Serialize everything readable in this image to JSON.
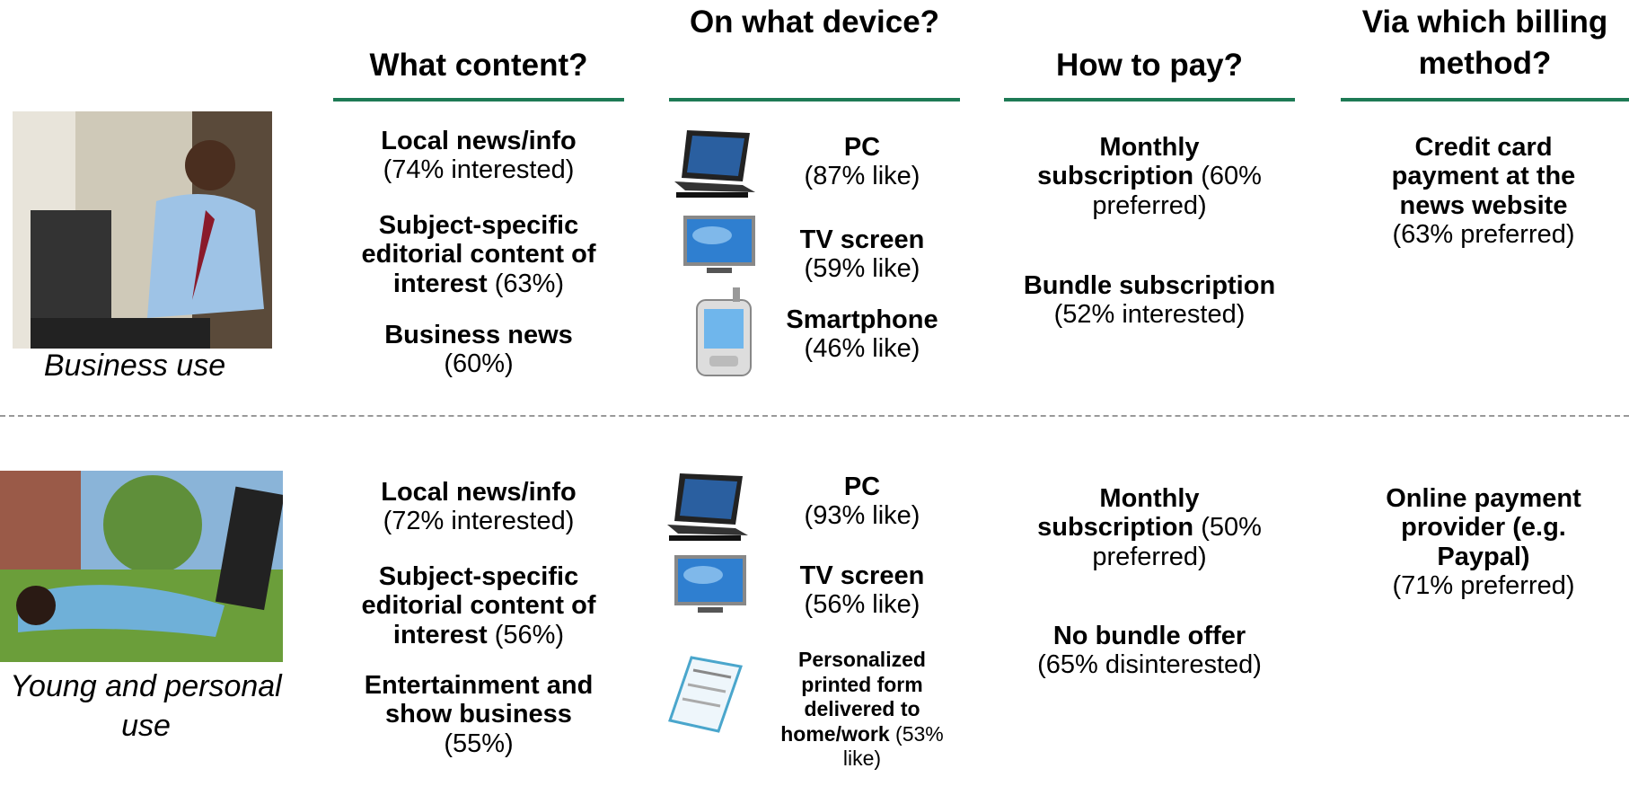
{
  "headers": [
    "What content?",
    "On what device?",
    "How to pay?",
    "Via which billing method?"
  ],
  "rows": [
    {
      "label": "Business use",
      "content": [
        {
          "bold": "Local news/info",
          "normal": "(74% interested)"
        },
        {
          "bold": "Subject-specific editorial content of interest",
          "normal": "(63%)"
        },
        {
          "bold": "Business news",
          "normal": "(60%)"
        }
      ],
      "devices": [
        {
          "bold": "PC",
          "normal": "(87% like)"
        },
        {
          "bold": "TV screen",
          "normal": "(59% like)"
        },
        {
          "bold": "Smartphone",
          "normal": "(46% like)"
        }
      ],
      "pay": [
        {
          "bold": "Monthly subscription",
          "normal": "(60% preferred)"
        },
        {
          "bold": "Bundle subscription",
          "normal": "(52% interested)"
        }
      ],
      "billing": [
        {
          "bold": "Credit card payment at the news website",
          "normal": "(63% preferred)"
        }
      ]
    },
    {
      "label": "Young and personal use",
      "content": [
        {
          "bold": "Local news/info",
          "normal": "(72% interested)"
        },
        {
          "bold": "Subject-specific editorial content of interest",
          "normal": "(56%)"
        },
        {
          "bold": "Entertainment and show business",
          "normal": "(55%)"
        }
      ],
      "devices": [
        {
          "bold": "PC",
          "normal": "(93% like)"
        },
        {
          "bold": "TV screen",
          "normal": "(56% like)"
        },
        {
          "bold": "Personalized printed form delivered to home/work",
          "normal": "(53% like)"
        }
      ],
      "pay": [
        {
          "bold": "Monthly subscription",
          "normal": "(50% preferred)"
        },
        {
          "bold": "No bundle offer",
          "normal": "(65% disinterested)"
        }
      ],
      "billing": [
        {
          "bold": "Online payment provider (e.g. Paypal)",
          "normal": "(71% preferred)"
        }
      ]
    }
  ]
}
